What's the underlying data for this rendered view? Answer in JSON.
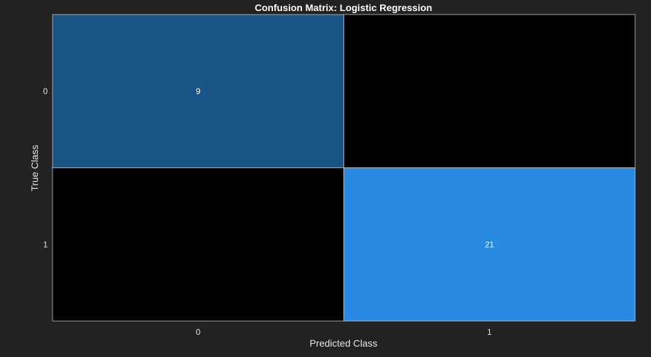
{
  "chart_data": {
    "type": "heatmap",
    "title": "Confusion Matrix: Logistic Regression",
    "xlabel": "Predicted Class",
    "ylabel": "True Class",
    "x_categories": [
      "0",
      "1"
    ],
    "y_categories": [
      "0",
      "1"
    ],
    "values": [
      [
        9,
        0
      ],
      [
        0,
        21
      ]
    ],
    "cell_labels": [
      [
        "9",
        ""
      ],
      [
        "",
        "21"
      ]
    ],
    "grid": false
  },
  "colors": {
    "background": "#222222",
    "empty_cell": "#000000",
    "cell_scale_low": "#1a5587",
    "cell_scale_high": "#288ae0",
    "text": "#e6e6e6",
    "cell_border": "#bfc6cc"
  }
}
